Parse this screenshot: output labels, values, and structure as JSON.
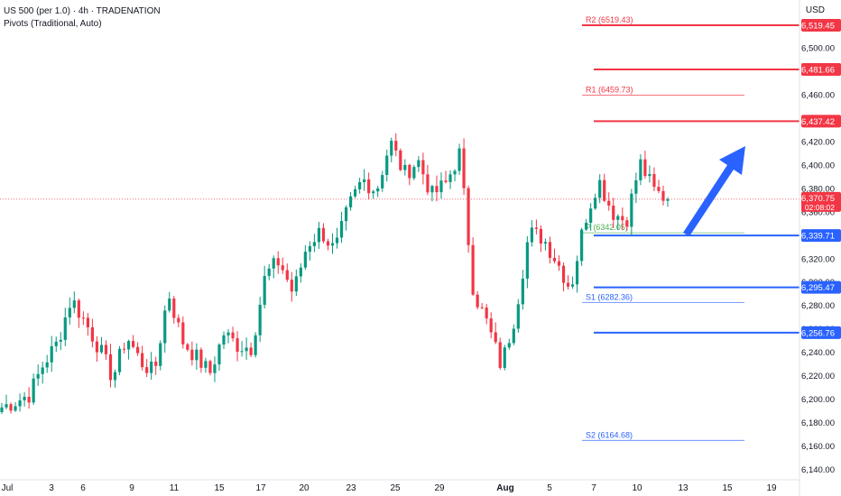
{
  "legend": {
    "symbol": "US 500 (per 1.0) · 4h · TRADENATION",
    "indicator": "Pivots (Traditional, Auto)"
  },
  "currency": "USD",
  "chart_data": {
    "type": "candlestick",
    "title": "",
    "ylim": [
      6131,
      6541
    ],
    "y_ticks": [
      6140,
      6160,
      6180,
      6200,
      6220,
      6240,
      6260,
      6280,
      6300,
      6320,
      6340,
      6360,
      6380,
      6400,
      6420,
      6440,
      6460,
      6480,
      6500,
      6520
    ],
    "x_ticks": [
      "Jul",
      "3",
      "6",
      "9",
      "11",
      "15",
      "17",
      "20",
      "23",
      "25",
      "29",
      "Aug",
      "5",
      "7",
      "10",
      "13",
      "15",
      "19"
    ],
    "current_price": {
      "value": 6370.75,
      "label": "6,370.75",
      "countdown": "02:08:02",
      "color": "#f23645"
    },
    "pivot_levels": [
      {
        "name": "R2",
        "label": "R2 (6519.43)",
        "value": 6519.43,
        "color": "#f23645"
      },
      {
        "name": "R1",
        "label": "R1 (6459.73)",
        "value": 6459.73,
        "color": "#f23645"
      },
      {
        "name": "P",
        "label": "P (6342.05)",
        "value": 6342.05,
        "color": "#4caf50"
      },
      {
        "name": "S1",
        "label": "S1 (6282.36)",
        "value": 6282.36,
        "color": "#2962ff"
      },
      {
        "name": "S2",
        "label": "S2 (6164.68)",
        "value": 6164.68,
        "color": "#2962ff"
      }
    ],
    "horizontal_levels": [
      {
        "value": 6519.45,
        "label": "6,519.45",
        "color": "#f23645"
      },
      {
        "value": 6481.66,
        "label": "6,481.66",
        "color": "#f23645"
      },
      {
        "value": 6437.42,
        "label": "6,437.42",
        "color": "#f23645"
      },
      {
        "value": 6339.71,
        "label": "6,339.71",
        "color": "#2962ff"
      },
      {
        "value": 6295.47,
        "label": "6,295.47",
        "color": "#2962ff"
      },
      {
        "value": 6256.76,
        "label": "6,256.76",
        "color": "#2962ff"
      }
    ],
    "anchor_closes": [
      6193,
      6198,
      6204,
      6230,
      6248,
      6286,
      6266,
      6244,
      6218,
      6254,
      6232,
      6222,
      6292,
      6250,
      6236,
      6222,
      6256,
      6246,
      6244,
      6306,
      6318,
      6290,
      6332,
      6344,
      6326,
      6364,
      6388,
      6378,
      6420,
      6392,
      6404,
      6374,
      6384,
      6410,
      6292,
      6264,
      6228,
      6272,
      6342,
      6338,
      6318,
      6294,
      6352,
      6388,
      6360,
      6352,
      6402,
      6378,
      6370.75
    ],
    "colors": {
      "up": "#089981",
      "down": "#f23645",
      "arrow": "#2962ff"
    }
  }
}
